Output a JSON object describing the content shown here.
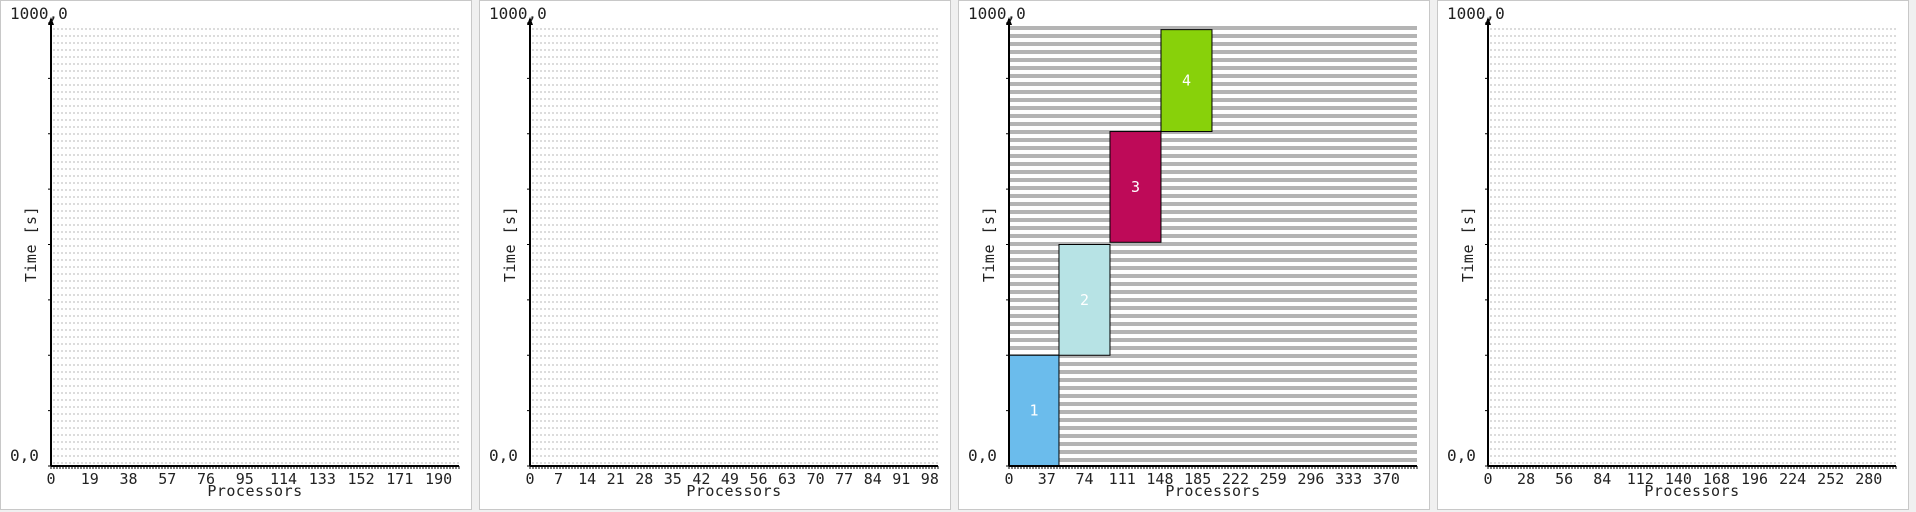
{
  "colors": {
    "grid_light": "#d0d0d0",
    "grid_dense": "#b4b4b4",
    "axis": "#000000",
    "job_1": "#6bbcec",
    "job_2": "#b7e3e5",
    "job_3": "#be0a58",
    "job_4": "#88d10a"
  },
  "chart_data": [
    {
      "type": "gantt",
      "ylabel": "Time [s]",
      "xlabel": "Processors",
      "y_top_label": "1000,0",
      "y_bottom_label": "0,0",
      "ylim": [
        0,
        1000
      ],
      "xlim": [
        0,
        200
      ],
      "x_ticks": [
        "0",
        "19",
        "38",
        "57",
        "76",
        "95",
        "114",
        "133",
        "152",
        "171",
        "190"
      ],
      "x_tick_values": [
        0,
        19,
        38,
        57,
        76,
        95,
        114,
        133,
        152,
        171,
        190
      ],
      "grid": "light",
      "jobs": []
    },
    {
      "type": "gantt",
      "ylabel": "Time [s]",
      "xlabel": "Processors",
      "y_top_label": "1000,0",
      "y_bottom_label": "0,0",
      "ylim": [
        0,
        1000
      ],
      "xlim": [
        0,
        100
      ],
      "x_ticks": [
        "0",
        "7",
        "14",
        "21",
        "28",
        "35",
        "42",
        "49",
        "56",
        "63",
        "70",
        "77",
        "84",
        "91",
        "98"
      ],
      "x_tick_values": [
        0,
        7,
        14,
        21,
        28,
        35,
        42,
        49,
        56,
        63,
        70,
        77,
        84,
        91,
        98
      ],
      "grid": "light",
      "jobs": []
    },
    {
      "type": "gantt",
      "ylabel": "Time [s]",
      "xlabel": "Processors",
      "y_top_label": "1000,0",
      "y_bottom_label": "0,0",
      "ylim": [
        0,
        1000
      ],
      "xlim": [
        0,
        400
      ],
      "x_ticks": [
        "0",
        "37",
        "74",
        "111",
        "148",
        "185",
        "222",
        "259",
        "296",
        "333",
        "370"
      ],
      "x_tick_values": [
        0,
        37,
        74,
        111,
        148,
        185,
        222,
        259,
        296,
        333,
        370
      ],
      "grid": "dense",
      "jobs": [
        {
          "label": "1",
          "x_start": 0,
          "x_end": 49,
          "y_start": 0,
          "y_end": 250,
          "color": "#6bbcec"
        },
        {
          "label": "2",
          "x_start": 49,
          "x_end": 99,
          "y_start": 250,
          "y_end": 500,
          "color": "#b7e3e5"
        },
        {
          "label": "3",
          "x_start": 99,
          "x_end": 149,
          "y_start": 505,
          "y_end": 755,
          "color": "#be0a58"
        },
        {
          "label": "4",
          "x_start": 149,
          "x_end": 199,
          "y_start": 755,
          "y_end": 985,
          "color": "#88d10a"
        }
      ]
    },
    {
      "type": "gantt",
      "ylabel": "Time [s]",
      "xlabel": "Processors",
      "y_top_label": "1000,0",
      "y_bottom_label": "0,0",
      "ylim": [
        0,
        1000
      ],
      "xlim": [
        0,
        300
      ],
      "x_ticks": [
        "0",
        "28",
        "56",
        "84",
        "112",
        "140",
        "168",
        "196",
        "224",
        "252",
        "280"
      ],
      "x_tick_values": [
        0,
        28,
        56,
        84,
        112,
        140,
        168,
        196,
        224,
        252,
        280
      ],
      "grid": "light",
      "jobs": []
    }
  ]
}
